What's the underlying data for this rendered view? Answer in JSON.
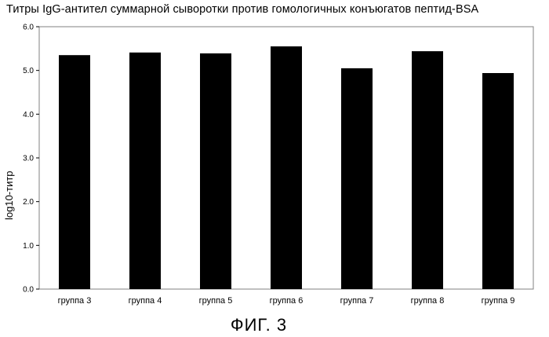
{
  "chart_data": {
    "type": "bar",
    "title": "Титры IgG-антител суммарной сыворотки против гомологичных конъюгатов пептид-BSA",
    "xlabel": "",
    "ylabel": "log10-титр",
    "categories": [
      "группа 3",
      "группа 4",
      "группа 5",
      "группа 6",
      "группа 7",
      "группа 8",
      "группа 9"
    ],
    "values": [
      5.35,
      5.41,
      5.39,
      5.55,
      5.05,
      5.44,
      4.94
    ],
    "ylim": [
      0,
      6
    ],
    "yticks": [
      "0.0",
      "1.0",
      "2.0",
      "3.0",
      "4.0",
      "5.0",
      "6.0"
    ],
    "grid": false,
    "legend": "none",
    "bar_color": "#000000"
  },
  "caption": "ФИГ. 3"
}
